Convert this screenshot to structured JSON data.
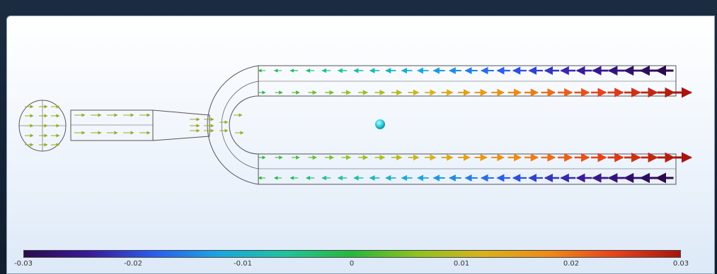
{
  "colorbar": {
    "ticks": [
      "-0.03",
      "-0.02",
      "-0.01",
      "0",
      "0.01",
      "0.02",
      "0.03"
    ],
    "min": -0.03,
    "max": 0.03,
    "colormap": [
      "#2b0a4e",
      "#3a1a9a",
      "#2a5ef0",
      "#1aa7e0",
      "#1fc49a",
      "#27b83a",
      "#8fc21f",
      "#d9b21a",
      "#f08a14",
      "#e8421a",
      "#a8140e"
    ]
  },
  "colors": {
    "geometry_stroke": "#555555",
    "neutral_arrow": "#9aa822",
    "sphere": "#2fd1dd"
  }
}
